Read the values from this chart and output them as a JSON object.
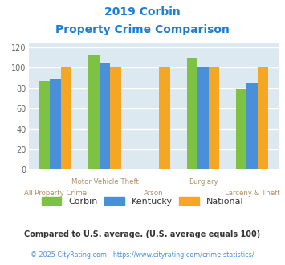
{
  "title_line1": "2019 Corbin",
  "title_line2": "Property Crime Comparison",
  "title_color": "#1a7fd4",
  "categories": [
    "All Property Crime",
    "Motor Vehicle Theft",
    "Arson",
    "Burglary",
    "Larceny & Theft"
  ],
  "x_positions": [
    0,
    1,
    2,
    3,
    4
  ],
  "corbin": [
    87,
    113,
    null,
    110,
    79
  ],
  "kentucky": [
    89,
    104,
    null,
    101,
    85
  ],
  "national": [
    100,
    100,
    100,
    100,
    100
  ],
  "bar_width": 0.22,
  "color_corbin": "#7dc242",
  "color_kentucky": "#4a90d9",
  "color_national": "#f5a623",
  "ylim": [
    0,
    125
  ],
  "yticks": [
    0,
    20,
    40,
    60,
    80,
    100,
    120
  ],
  "bg_color": "#dce9f0",
  "grid_color": "#ffffff",
  "xlabel_color": "#b0906a",
  "legend_text_color": "#333333",
  "footnote1": "Compared to U.S. average. (U.S. average equals 100)",
  "footnote2": "© 2025 CityRating.com - https://www.cityrating.com/crime-statistics/",
  "footnote1_color": "#333333",
  "footnote2_color": "#4a90d9"
}
